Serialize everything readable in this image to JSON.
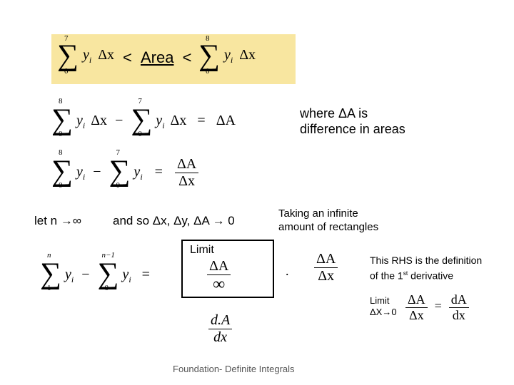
{
  "colors": {
    "background": "#ffffff",
    "highlight": "#f8e6a0",
    "text": "#000000",
    "box_border": "#000000"
  },
  "fonts": {
    "casual": "Comic Sans MS",
    "math": "Times New Roman",
    "note": "Arial"
  },
  "summations": {
    "sum1": {
      "upper": "7",
      "lower": "0",
      "expr_y": "y",
      "expr_sub": "i",
      "dx": "Δx"
    },
    "sum2": {
      "upper": "8",
      "lower": "0",
      "expr_y": "y",
      "expr_sub": "i",
      "dx": "Δx"
    },
    "diff_line1": {
      "a_upper": "8",
      "a_lower": "0",
      "b_upper": "7",
      "b_lower": "0",
      "y": "y",
      "sub": "i",
      "dx": "Δx",
      "eq": "=",
      "rhs": "ΔA"
    },
    "diff_line2": {
      "a_upper": "8",
      "a_lower": "0",
      "b_upper": "7",
      "b_lower": "0",
      "y": "y",
      "sub": "i",
      "eq": "=",
      "frac_num": "ΔA",
      "frac_den": "Δx"
    },
    "diff_gen": {
      "a_upper": "n",
      "a_lower": "1",
      "b_upper": "n−1",
      "b_lower": "0",
      "y": "y",
      "sub": "i",
      "eq": "="
    }
  },
  "area": {
    "lt1": "<",
    "word": "Area",
    "lt2": "<"
  },
  "note1": "where ΔA is difference in areas",
  "limit_line": {
    "letn": "let n →∞",
    "andso": "and so Δx, Δy, ΔA → 0"
  },
  "note2": "Taking an infinite amount of rectangles",
  "ratio_box": {
    "limit_label": "Limit",
    "num": "ΔA",
    "den": "∞",
    "eq": ".",
    "rhs_num": "ΔA",
    "rhs_den": "Δx"
  },
  "note3_a": "This RHS is the definition",
  "note3_b": "of the 1",
  "note3_sup": "st",
  "note3_c": " derivative",
  "limit_small": {
    "label": "Limit",
    "cond": "ΔX→0"
  },
  "final_eq": {
    "lhs_num": "ΔA",
    "lhs_den": "Δx",
    "eq": "=",
    "rhs_num": "dA",
    "rhs_den": "dx"
  },
  "last_frac": {
    "num_d": "d",
    "num_A": "A",
    "den": "dx"
  },
  "footer": "Foundation- Definite Integrals"
}
